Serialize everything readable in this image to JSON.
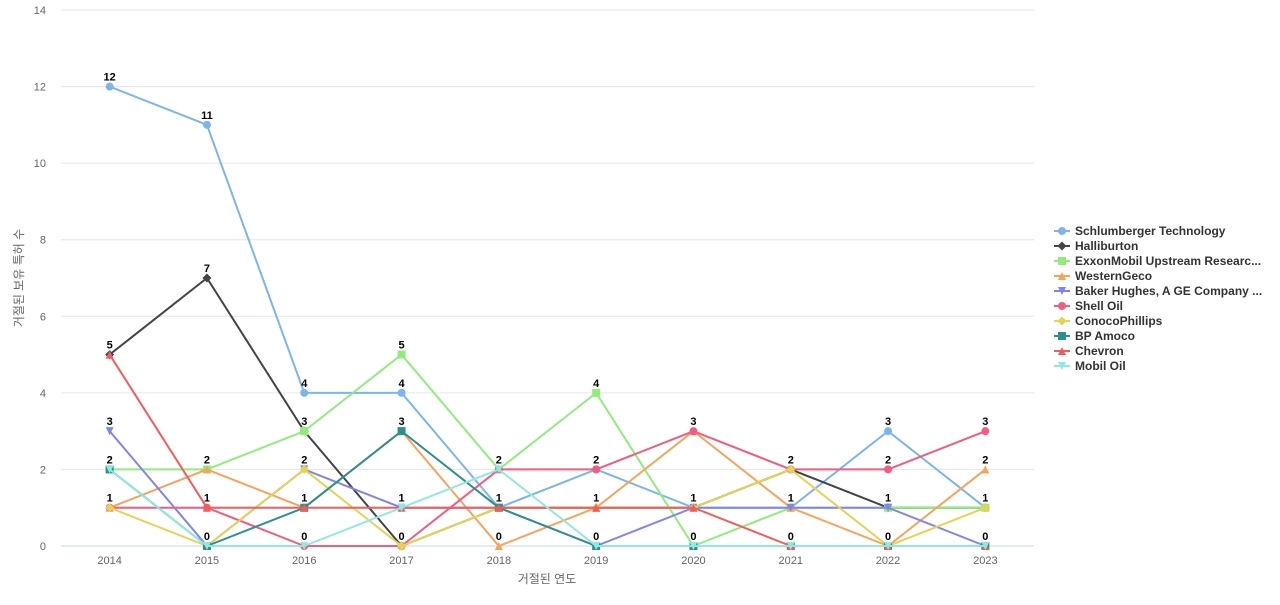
{
  "chart_data": {
    "type": "line",
    "title": "",
    "xlabel": "거절된 연도",
    "ylabel": "거절된 보유 특허 수",
    "categories": [
      "2014",
      "2015",
      "2016",
      "2017",
      "2018",
      "2019",
      "2020",
      "2021",
      "2022",
      "2023"
    ],
    "ylim": [
      0,
      14
    ],
    "yticks": [
      0,
      2,
      4,
      6,
      8,
      10,
      12,
      14
    ],
    "grid": true,
    "legend_position": "right",
    "series": [
      {
        "name": "Schlumberger Technology",
        "color": "#7cb5ec",
        "marker": "circle",
        "values": [
          12,
          11,
          4,
          4,
          1,
          2,
          1,
          1,
          3,
          1
        ]
      },
      {
        "name": "Halliburton",
        "color": "#434348",
        "marker": "diamond",
        "values": [
          5,
          7,
          3,
          0,
          1,
          1,
          1,
          2,
          1,
          1
        ]
      },
      {
        "name": "ExxonMobil Upstream Researc...",
        "color": "#90ed7d",
        "marker": "square",
        "values": [
          2,
          2,
          3,
          5,
          2,
          4,
          0,
          1,
          1,
          1
        ]
      },
      {
        "name": "WesternGeco",
        "color": "#f7a35c",
        "marker": "triangle",
        "values": [
          1,
          2,
          1,
          3,
          0,
          1,
          3,
          1,
          0,
          2
        ]
      },
      {
        "name": "Baker Hughes, A GE Company ...",
        "color": "#8085e9",
        "marker": "triangle-down",
        "values": [
          3,
          0,
          2,
          1,
          1,
          0,
          1,
          1,
          1,
          0
        ]
      },
      {
        "name": "Shell Oil",
        "color": "#f15c80",
        "marker": "circle",
        "values": [
          1,
          1,
          0,
          0,
          2,
          2,
          3,
          2,
          2,
          3
        ]
      },
      {
        "name": "ConocoPhillips",
        "color": "#e4d354",
        "marker": "diamond",
        "values": [
          1,
          0,
          2,
          0,
          1,
          1,
          1,
          2,
          0,
          1
        ]
      },
      {
        "name": "BP Amoco",
        "color": "#2b908f",
        "marker": "square",
        "values": [
          2,
          0,
          1,
          3,
          1,
          0,
          0,
          0,
          0,
          0
        ]
      },
      {
        "name": "Chevron",
        "color": "#f45b5b",
        "marker": "triangle",
        "values": [
          5,
          1,
          1,
          1,
          1,
          1,
          1,
          0,
          0,
          0
        ]
      },
      {
        "name": "Mobil Oil",
        "color": "#91e8e1",
        "marker": "triangle-down",
        "values": [
          2,
          0,
          0,
          1,
          2,
          0,
          0,
          0,
          0,
          0
        ]
      }
    ],
    "data_labels": [
      {
        "x": "2014",
        "value": 12
      },
      {
        "x": "2014",
        "value": 5
      },
      {
        "x": "2014",
        "value": 3
      },
      {
        "x": "2014",
        "value": 2
      },
      {
        "x": "2014",
        "value": 1
      },
      {
        "x": "2015",
        "value": 11
      },
      {
        "x": "2015",
        "value": 7
      },
      {
        "x": "2015",
        "value": 2
      },
      {
        "x": "2015",
        "value": 1
      },
      {
        "x": "2015",
        "value": 0
      },
      {
        "x": "2016",
        "value": 4
      },
      {
        "x": "2016",
        "value": 3
      },
      {
        "x": "2016",
        "value": 2
      },
      {
        "x": "2016",
        "value": 1
      },
      {
        "x": "2016",
        "value": 0
      },
      {
        "x": "2017",
        "value": 5
      },
      {
        "x": "2017",
        "value": 4
      },
      {
        "x": "2017",
        "value": 3
      },
      {
        "x": "2017",
        "value": 1
      },
      {
        "x": "2017",
        "value": 0
      },
      {
        "x": "2018",
        "value": 2
      },
      {
        "x": "2018",
        "value": 1
      },
      {
        "x": "2018",
        "value": 0
      },
      {
        "x": "2019",
        "value": 4
      },
      {
        "x": "2019",
        "value": 2
      },
      {
        "x": "2019",
        "value": 1
      },
      {
        "x": "2019",
        "value": 0
      },
      {
        "x": "2020",
        "value": 3
      },
      {
        "x": "2020",
        "value": 1
      },
      {
        "x": "2020",
        "value": 0
      },
      {
        "x": "2021",
        "value": 2
      },
      {
        "x": "2021",
        "value": 1
      },
      {
        "x": "2021",
        "value": 0
      },
      {
        "x": "2022",
        "value": 3
      },
      {
        "x": "2022",
        "value": 2
      },
      {
        "x": "2022",
        "value": 1
      },
      {
        "x": "2022",
        "value": 0
      },
      {
        "x": "2023",
        "value": 3
      },
      {
        "x": "2023",
        "value": 2
      },
      {
        "x": "2023",
        "value": 1
      },
      {
        "x": "2023",
        "value": 0
      }
    ]
  }
}
